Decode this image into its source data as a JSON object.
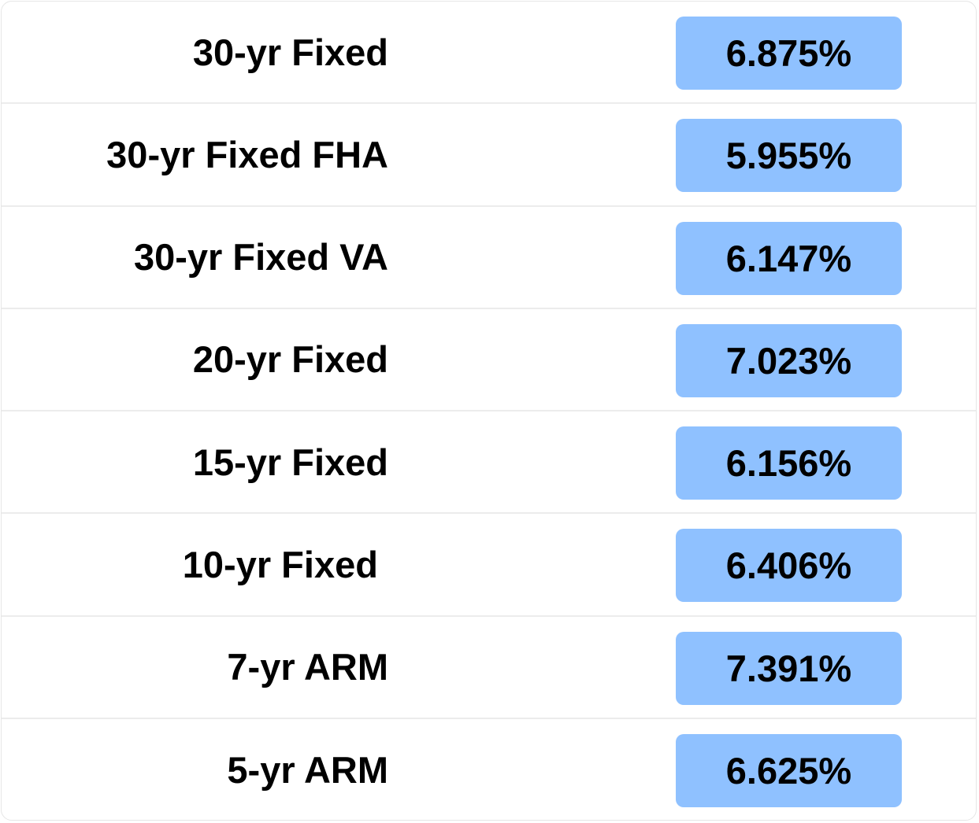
{
  "table": {
    "rows": [
      [
        "30-yr Fixed",
        "6.875%"
      ],
      [
        "30-yr Fixed FHA",
        "5.955%"
      ],
      [
        "30-yr Fixed VA",
        "6.147%"
      ],
      [
        "20-yr Fixed",
        "7.023%"
      ],
      [
        "15-yr Fixed",
        "6.156%"
      ],
      [
        "10-yr Fixed ",
        "6.406%"
      ],
      [
        "7-yr ARM",
        "7.391%"
      ],
      [
        "5-yr ARM",
        "6.625%"
      ]
    ]
  }
}
